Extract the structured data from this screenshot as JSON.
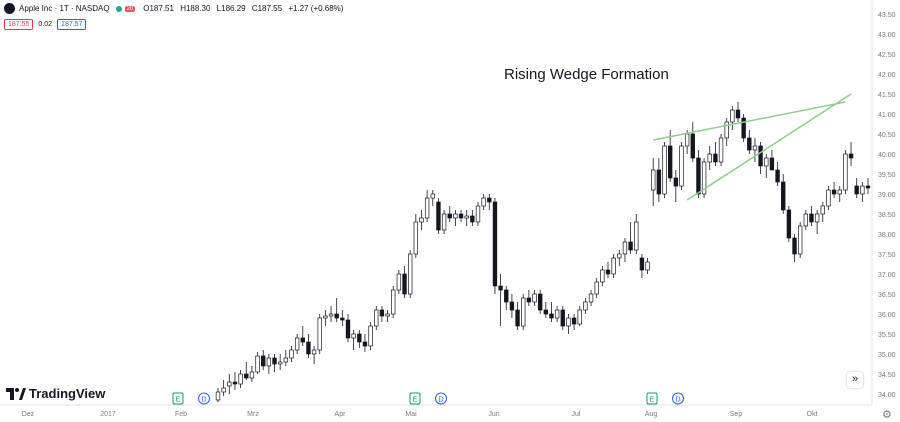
{
  "header": {
    "title": "Apple Inc · 1T · NASDAQ",
    "badge": "20",
    "open": "O187.51",
    "high": "H188.30",
    "low": "L186.29",
    "close": "C187.55",
    "change": "+1.27 (+0.68%)"
  },
  "price_boxes": {
    "bid": "187.55",
    "spread": "0.02",
    "ask": "187.57"
  },
  "brand": "TradingView",
  "icons": {
    "scroll": "double-chevron-right-icon",
    "settings": "gear-icon"
  },
  "colors": {
    "up_candle": "#ffffff",
    "down_candle": "#131722",
    "wedge_line": "#8ed08a",
    "event_e": "#089981",
    "event_d": "#2962ff"
  },
  "chart_data": {
    "type": "candlestick",
    "title": "",
    "annotation": "Rising Wedge Formation",
    "ylim": [
      33.85,
      43.6
    ],
    "y_ticks": [
      "34.00",
      "34.50",
      "35.00",
      "35.50",
      "36.00",
      "36.50",
      "37.00",
      "37.50",
      "38.00",
      "38.50",
      "39.00",
      "39.50",
      "40.00",
      "40.50",
      "41.00",
      "41.50",
      "42.00",
      "42.50",
      "43.00",
      "43.50"
    ],
    "x_ticks": [
      "Dez",
      "2017",
      "Feb",
      "Mrz",
      "Apr",
      "Mai",
      "Jun",
      "Jul",
      "Aug",
      "Sep",
      "Okt"
    ],
    "candles": [
      [
        33.85,
        34.15,
        33.8,
        34.05
      ],
      [
        34.05,
        34.35,
        33.95,
        34.15
      ],
      [
        34.2,
        34.5,
        34.0,
        34.3
      ],
      [
        34.3,
        34.55,
        34.1,
        34.25
      ],
      [
        34.25,
        34.6,
        34.15,
        34.5
      ],
      [
        34.5,
        34.8,
        34.35,
        34.4
      ],
      [
        34.4,
        34.7,
        34.3,
        34.55
      ],
      [
        34.55,
        35.05,
        34.5,
        34.95
      ],
      [
        34.95,
        35.1,
        34.6,
        34.7
      ],
      [
        34.7,
        35.0,
        34.5,
        34.9
      ],
      [
        34.9,
        35.0,
        34.55,
        34.75
      ],
      [
        34.75,
        35.0,
        34.6,
        34.8
      ],
      [
        34.8,
        35.1,
        34.7,
        34.9
      ],
      [
        34.9,
        35.2,
        34.8,
        35.1
      ],
      [
        35.1,
        35.5,
        35.0,
        35.4
      ],
      [
        35.4,
        35.7,
        35.2,
        35.3
      ],
      [
        35.3,
        35.5,
        34.9,
        35.0
      ],
      [
        35.0,
        35.2,
        34.75,
        35.1
      ],
      [
        35.1,
        36.0,
        35.0,
        35.9
      ],
      [
        35.9,
        36.1,
        35.7,
        35.95
      ],
      [
        35.95,
        36.2,
        35.8,
        36.0
      ],
      [
        36.0,
        36.4,
        35.8,
        35.9
      ],
      [
        35.9,
        36.1,
        35.7,
        35.85
      ],
      [
        35.85,
        36.0,
        35.3,
        35.4
      ],
      [
        35.4,
        35.6,
        35.1,
        35.5
      ],
      [
        35.5,
        35.6,
        35.15,
        35.3
      ],
      [
        35.3,
        35.5,
        35.05,
        35.2
      ],
      [
        35.2,
        35.8,
        35.1,
        35.7
      ],
      [
        35.7,
        36.2,
        35.6,
        36.1
      ],
      [
        36.1,
        36.2,
        35.8,
        35.95
      ],
      [
        35.95,
        36.1,
        35.8,
        36.0
      ],
      [
        36.0,
        36.7,
        35.9,
        36.6
      ],
      [
        36.6,
        37.1,
        36.5,
        37.0
      ],
      [
        37.0,
        37.2,
        36.4,
        36.5
      ],
      [
        36.5,
        37.6,
        36.4,
        37.5
      ],
      [
        37.5,
        38.5,
        37.4,
        38.3
      ],
      [
        38.3,
        38.6,
        38.1,
        38.4
      ],
      [
        38.4,
        39.1,
        38.3,
        38.9
      ],
      [
        38.9,
        39.1,
        38.7,
        39.0
      ],
      [
        38.8,
        38.9,
        38.0,
        38.1
      ],
      [
        38.1,
        38.6,
        38.0,
        38.5
      ],
      [
        38.5,
        38.7,
        38.3,
        38.4
      ],
      [
        38.4,
        38.6,
        38.2,
        38.5
      ],
      [
        38.5,
        38.6,
        38.3,
        38.4
      ],
      [
        38.4,
        38.6,
        38.2,
        38.45
      ],
      [
        38.45,
        38.6,
        38.2,
        38.3
      ],
      [
        38.3,
        38.8,
        38.2,
        38.7
      ],
      [
        38.7,
        39.0,
        38.6,
        38.9
      ],
      [
        38.9,
        39.0,
        38.6,
        38.8
      ],
      [
        38.8,
        38.9,
        36.5,
        36.7
      ],
      [
        36.7,
        37.0,
        35.7,
        36.6
      ],
      [
        36.6,
        36.7,
        36.1,
        36.3
      ],
      [
        36.3,
        36.5,
        35.9,
        36.1
      ],
      [
        36.1,
        36.3,
        35.6,
        35.7
      ],
      [
        35.7,
        36.5,
        35.6,
        36.4
      ],
      [
        36.4,
        36.6,
        36.2,
        36.3
      ],
      [
        36.3,
        36.6,
        36.2,
        36.5
      ],
      [
        36.5,
        36.6,
        36.0,
        36.1
      ],
      [
        36.1,
        36.3,
        35.9,
        36.0
      ],
      [
        36.0,
        36.3,
        35.8,
        35.9
      ],
      [
        35.9,
        36.2,
        35.8,
        36.1
      ],
      [
        36.1,
        36.2,
        35.6,
        35.7
      ],
      [
        35.7,
        36.0,
        35.5,
        35.9
      ],
      [
        35.9,
        36.0,
        35.6,
        35.75
      ],
      [
        35.75,
        36.2,
        35.7,
        36.1
      ],
      [
        36.1,
        36.4,
        36.0,
        36.3
      ],
      [
        36.3,
        36.6,
        36.2,
        36.5
      ],
      [
        36.5,
        36.9,
        36.4,
        36.8
      ],
      [
        36.8,
        37.2,
        36.7,
        37.1
      ],
      [
        37.1,
        37.3,
        36.9,
        37.0
      ],
      [
        37.0,
        37.5,
        36.9,
        37.4
      ],
      [
        37.4,
        37.6,
        37.2,
        37.5
      ],
      [
        37.5,
        37.9,
        37.3,
        37.8
      ],
      [
        37.8,
        38.3,
        37.5,
        37.6
      ],
      [
        37.6,
        38.5,
        37.5,
        38.3
      ],
      [
        37.4,
        37.5,
        36.9,
        37.1
      ],
      [
        37.1,
        37.4,
        37.0,
        37.3
      ],
      [
        39.1,
        39.9,
        38.7,
        39.6
      ],
      [
        39.6,
        39.9,
        38.8,
        39.0
      ],
      [
        39.0,
        40.3,
        38.9,
        40.2
      ],
      [
        40.2,
        40.6,
        39.3,
        39.4
      ],
      [
        39.4,
        39.6,
        38.8,
        39.2
      ],
      [
        39.2,
        40.3,
        39.1,
        40.2
      ],
      [
        40.2,
        40.6,
        40.0,
        40.5
      ],
      [
        40.5,
        40.8,
        39.8,
        39.9
      ],
      [
        39.9,
        40.1,
        38.9,
        39.0
      ],
      [
        39.0,
        39.9,
        38.9,
        39.8
      ],
      [
        39.8,
        40.2,
        39.6,
        40.0
      ],
      [
        40.0,
        40.3,
        39.7,
        39.8
      ],
      [
        39.8,
        40.5,
        39.7,
        40.4
      ],
      [
        40.4,
        40.9,
        40.2,
        40.8
      ],
      [
        40.8,
        41.2,
        40.6,
        41.1
      ],
      [
        41.1,
        41.3,
        40.8,
        40.9
      ],
      [
        40.9,
        41.0,
        40.3,
        40.4
      ],
      [
        40.4,
        40.6,
        40.0,
        40.1
      ],
      [
        40.1,
        40.4,
        39.8,
        40.2
      ],
      [
        40.2,
        40.3,
        39.5,
        39.7
      ],
      [
        39.7,
        40.0,
        39.4,
        39.9
      ],
      [
        39.9,
        40.1,
        39.6,
        39.6
      ],
      [
        39.6,
        39.8,
        39.2,
        39.3
      ],
      [
        39.3,
        39.5,
        38.5,
        38.6
      ],
      [
        38.6,
        38.7,
        37.8,
        37.9
      ],
      [
        37.9,
        38.0,
        37.3,
        37.5
      ],
      [
        37.5,
        38.3,
        37.4,
        38.2
      ],
      [
        38.2,
        38.6,
        38.1,
        38.5
      ],
      [
        38.5,
        38.7,
        38.2,
        38.3
      ],
      [
        38.3,
        38.6,
        38.0,
        38.5
      ],
      [
        38.5,
        38.8,
        38.3,
        38.7
      ],
      [
        38.7,
        39.2,
        38.6,
        39.1
      ],
      [
        39.1,
        39.3,
        38.9,
        39.0
      ],
      [
        39.0,
        39.2,
        38.8,
        39.1
      ],
      [
        39.1,
        40.1,
        39.0,
        40.0
      ],
      [
        40.0,
        40.3,
        39.7,
        39.9
      ],
      [
        39.2,
        39.4,
        38.9,
        39.0
      ],
      [
        39.0,
        39.3,
        38.8,
        39.2
      ],
      [
        39.2,
        39.4,
        39.0,
        39.15
      ]
    ],
    "wedge_upper": [
      [
        77,
        40.35
      ],
      [
        111,
        41.3
      ]
    ],
    "wedge_lower": [
      [
        83,
        38.85
      ],
      [
        112,
        41.5
      ]
    ],
    "events": [
      {
        "label": "E",
        "x_month": "Feb"
      },
      {
        "label": "D",
        "x_month": "Feb"
      },
      {
        "label": "E",
        "x_month": "Mai"
      },
      {
        "label": "D",
        "x_month": "Mai"
      },
      {
        "label": "E",
        "x_month": "Aug"
      },
      {
        "label": "D",
        "x_month": "Aug"
      }
    ]
  }
}
